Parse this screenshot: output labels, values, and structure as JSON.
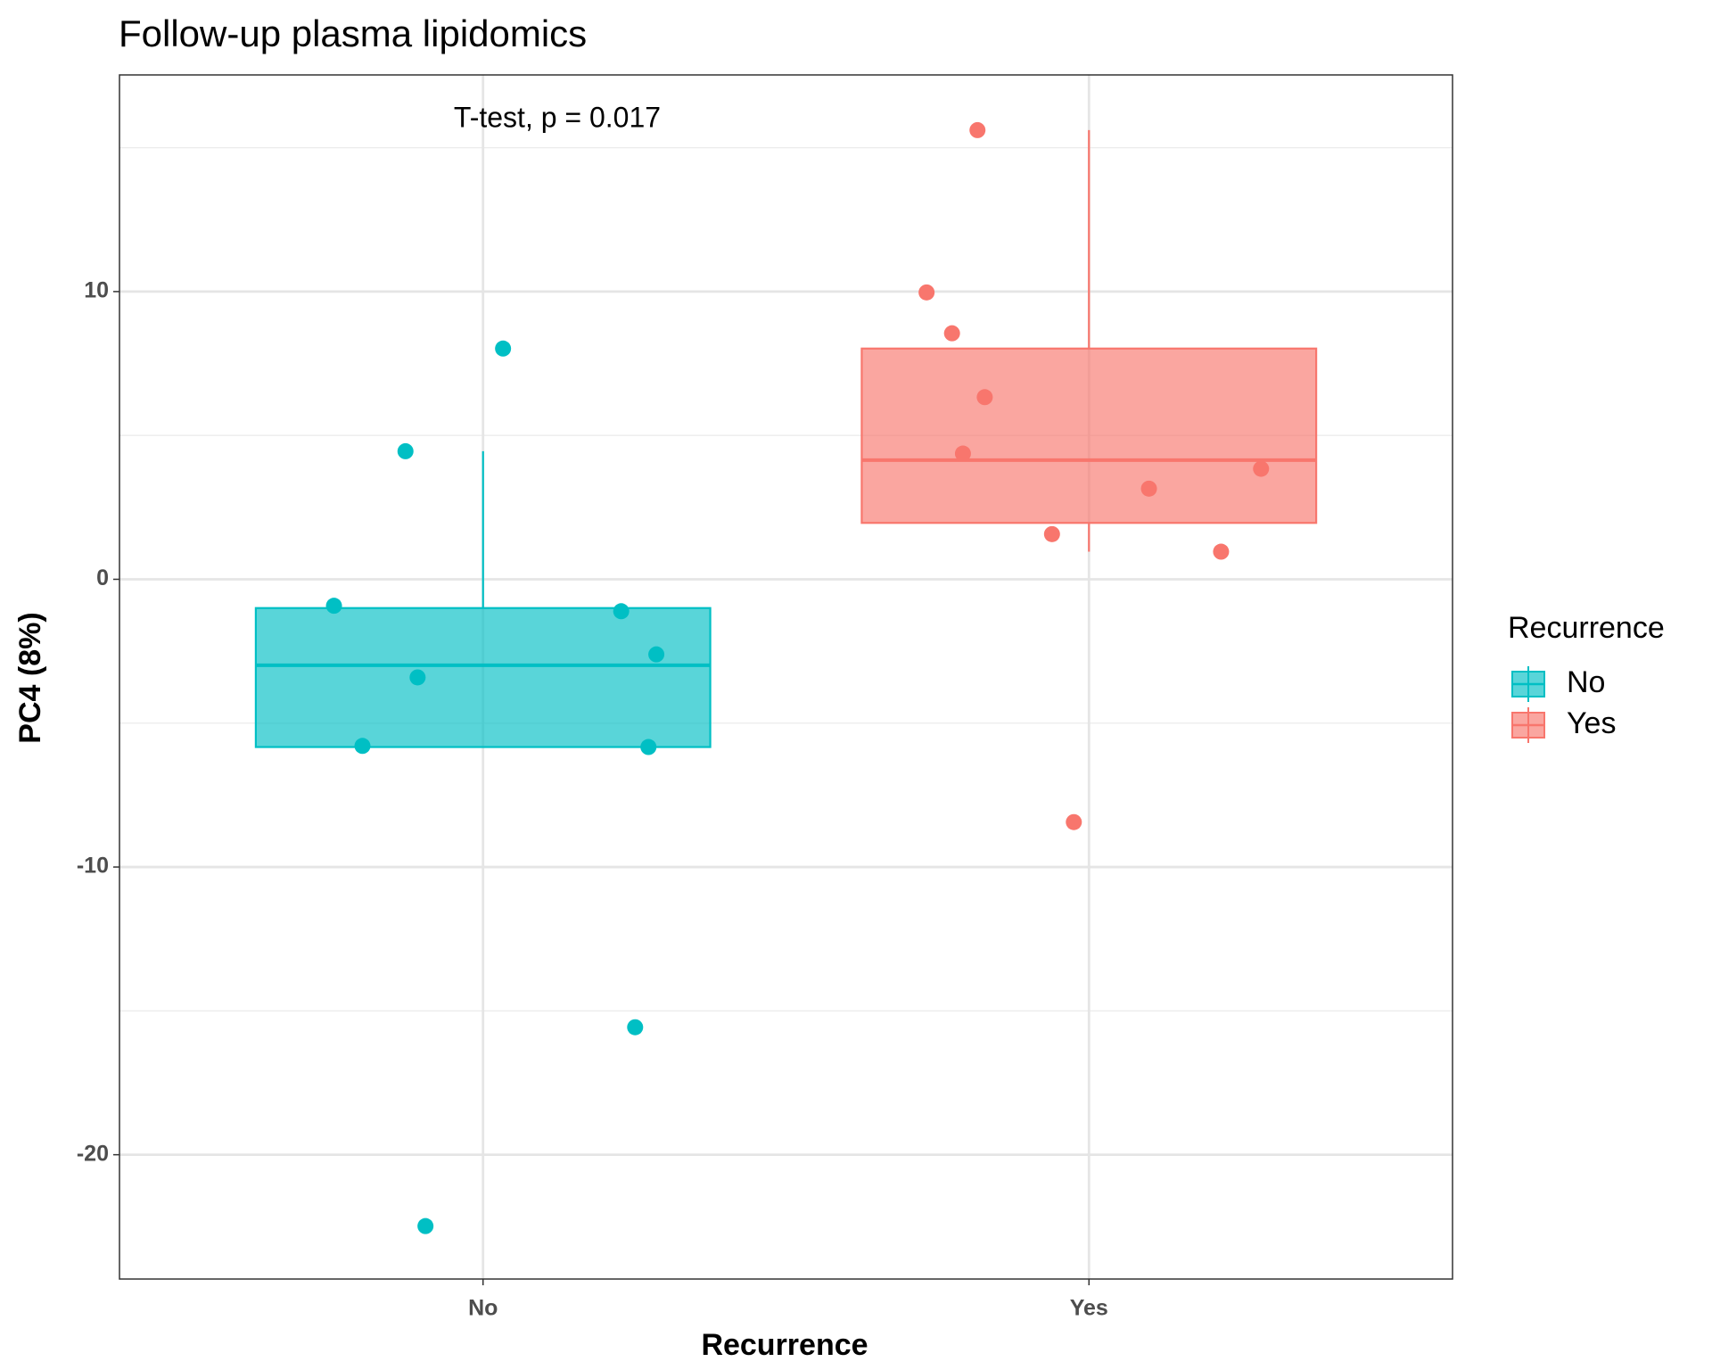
{
  "chart_data": {
    "type": "box",
    "title": "Follow-up plasma lipidomics",
    "annotation": "T-test, p = 0.017",
    "x_label": "Recurrence",
    "y_label": "PC4 (8%)",
    "legend_title": "Recurrence",
    "legend": "right",
    "grid": true,
    "categories": [
      "No",
      "Yes"
    ],
    "xlim": [
      0.4,
      2.6
    ],
    "ylim": [
      -24.32,
      17.53
    ],
    "yticks": [
      -20,
      -10,
      0,
      10
    ],
    "minor_yticks": [
      -15,
      -5,
      5,
      15
    ],
    "series": [
      {
        "name": "No",
        "color": "#00BFC4",
        "box": {
          "whisker_low": -5.83,
          "q1": -5.83,
          "median": -2.99,
          "q3": -1.0,
          "whisker_high": 4.45
        },
        "x": [
          0.754,
          0.872,
          0.892,
          0.801,
          1.033,
          1.228,
          1.286,
          1.273,
          1.251,
          0.905
        ],
        "values": [
          -0.92,
          4.45,
          -3.41,
          -5.79,
          8.02,
          -1.11,
          -2.61,
          -5.83,
          -15.57,
          -22.48
        ]
      },
      {
        "name": "Yes",
        "color": "#F8766D",
        "box": {
          "whisker_low": 0.96,
          "q1": 1.96,
          "median": 4.14,
          "q3": 8.02,
          "whisker_high": 15.61
        },
        "x": [
          1.816,
          1.732,
          1.774,
          1.828,
          1.792,
          2.099,
          2.284,
          1.939,
          2.218,
          1.975
        ],
        "values": [
          15.61,
          9.97,
          8.55,
          6.33,
          4.37,
          3.15,
          3.84,
          1.57,
          0.96,
          -8.44
        ]
      }
    ]
  }
}
